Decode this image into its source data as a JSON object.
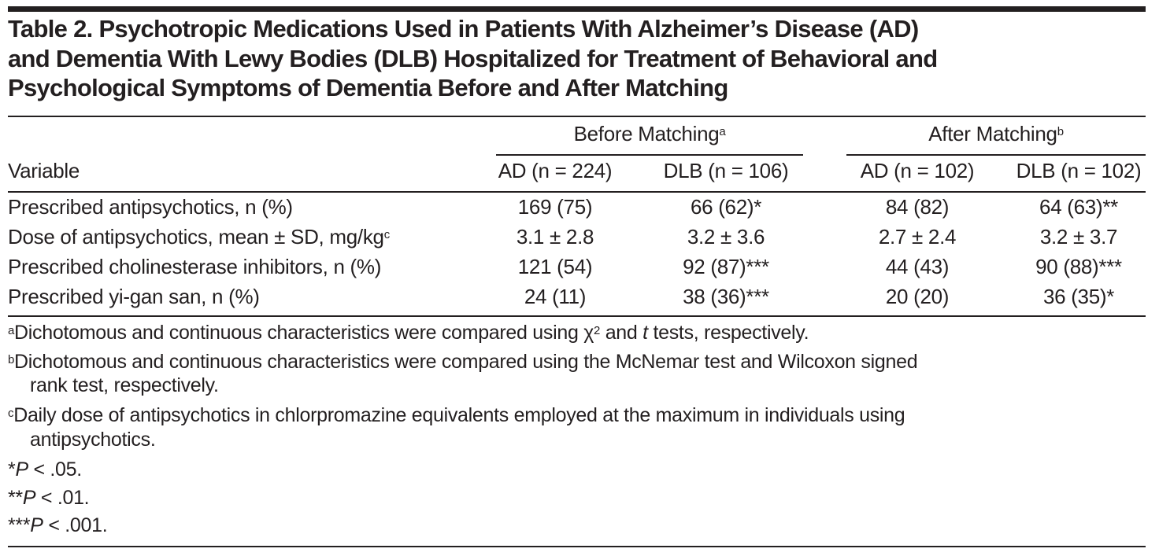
{
  "title": "Table 2. Psychotropic Medications Used in Patients With Alzheimer’s Disease (AD) and Dementia With Lewy Bodies (DLB) Hospitalized for Treatment of Behavioral and Psychological Symptoms of Dementia Before and After Matching",
  "title_lines": [
    "Table 2. Psychotropic Medications Used in Patients With Alzheimer’s Disease (AD)",
    "and Dementia With Lewy Bodies (DLB) Hospitalized for Treatment of Behavioral and",
    "Psychological Symptoms of Dementia Before and After Matching"
  ],
  "spanners": [
    {
      "label": "Before Matching",
      "sup": "a"
    },
    {
      "label": "After Matching",
      "sup": "b"
    }
  ],
  "columns": [
    "Variable",
    "AD (n = 224)",
    "DLB (n = 106)",
    "AD (n = 102)",
    "DLB (n = 102)"
  ],
  "rows": [
    {
      "label": "Prescribed antipsychotics, n (%)",
      "sup": "",
      "values": [
        "169 (75)",
        "66 (62)*",
        "84 (82)",
        "64 (63)**"
      ]
    },
    {
      "label": "Dose of antipsychotics, mean ± SD, mg/kg",
      "sup": "c",
      "values": [
        "3.1 ± 2.8",
        "3.2 ± 3.6",
        "2.7 ± 2.4",
        "3.2 ± 3.7"
      ]
    },
    {
      "label": "Prescribed cholinesterase inhibitors, n (%)",
      "sup": "",
      "values": [
        "121 (54)",
        "92 (87)***",
        "44 (43)",
        "90 (88)***"
      ]
    },
    {
      "label": "Prescribed yi-gan san, n (%)",
      "sup": "",
      "values": [
        "24 (11)",
        "38 (36)***",
        "20 (20)",
        "36 (35)*"
      ]
    }
  ],
  "footnotes": {
    "a": {
      "mark": "a",
      "text1": "Dichotomous and continuous characteristics were compared using χ",
      "sup": "2",
      "text2": " and ",
      "italic": "t",
      "text3": " tests, respectively."
    },
    "b": {
      "mark": "b",
      "line1": "Dichotomous and continuous characteristics were compared using the McNemar test and Wilcoxon signed",
      "line2": "rank test, respectively."
    },
    "c": {
      "mark": "c",
      "line1": "Daily dose of antipsychotics in chlorpromazine equivalents employed at the maximum in individuals using",
      "line2": "antipsychotics."
    },
    "p1": {
      "stars": "*",
      "p": "P",
      "rest": " < .05."
    },
    "p2": {
      "stars": "**",
      "p": "P",
      "rest": " < .01."
    },
    "p3": {
      "stars": "***",
      "p": "P",
      "rest": " < .001."
    }
  }
}
